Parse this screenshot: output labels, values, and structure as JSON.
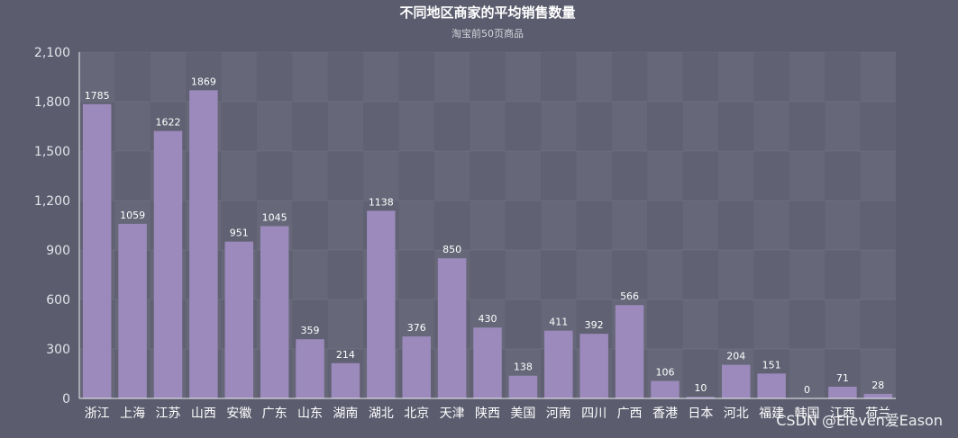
{
  "chart_data": {
    "type": "bar",
    "title": "不同地区商家的平均销售数量",
    "subtitle": "淘宝前50页商品",
    "xlabel": "",
    "ylabel": "",
    "categories": [
      "浙江",
      "上海",
      "江苏",
      "山西",
      "安徽",
      "广东",
      "山东",
      "湖南",
      "湖北",
      "北京",
      "天津",
      "陕西",
      "美国",
      "河南",
      "四川",
      "广西",
      "香港",
      "日本",
      "河北",
      "福建",
      "韩国",
      "江西",
      "荷兰"
    ],
    "values": [
      1785,
      1059,
      1622,
      1869,
      951,
      1045,
      359,
      214,
      1138,
      376,
      850,
      430,
      138,
      411,
      392,
      566,
      106,
      10,
      204,
      151,
      0,
      71,
      28
    ],
    "ylim": [
      0,
      2100
    ],
    "yticks": [
      "0",
      "300",
      "600",
      "900",
      "1,200",
      "1,500",
      "1,800",
      "2,100"
    ],
    "grid": true,
    "legend": "none",
    "bar_color": "#9b8abb",
    "background": "#5b5c6e"
  },
  "watermark": "CSDN @Eleven爱Eason"
}
